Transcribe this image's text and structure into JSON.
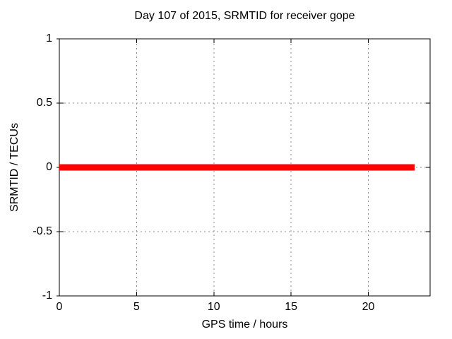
{
  "figure": {
    "background": "#ffffff",
    "text_color": "#000000"
  },
  "chart_data": {
    "type": "line",
    "title": "Day 107 of 2015, SRMTID for receiver gope",
    "xlabel": "GPS time / hours",
    "ylabel": "SRMTID / TECUs",
    "xlim": [
      0,
      24
    ],
    "ylim": [
      -1,
      1
    ],
    "xticks": [
      {
        "value": 0,
        "label": "0"
      },
      {
        "value": 5,
        "label": "5"
      },
      {
        "value": 10,
        "label": "10"
      },
      {
        "value": 15,
        "label": "15"
      },
      {
        "value": 20,
        "label": "20"
      }
    ],
    "yticks": [
      {
        "value": -1,
        "label": "-1"
      },
      {
        "value": -0.5,
        "label": "-0.5"
      },
      {
        "value": 0,
        "label": "0"
      },
      {
        "value": 0.5,
        "label": "0.5"
      },
      {
        "value": 1,
        "label": "1"
      }
    ],
    "grid": {
      "show": true,
      "style": "dashed",
      "color": "#8c8c8c"
    },
    "axis_color": "#000000",
    "legend": null,
    "series": [
      {
        "name": "SRMTID",
        "color": "#ff0000",
        "line_width": 9,
        "x": [
          0,
          23
        ],
        "y": [
          0,
          0
        ]
      }
    ]
  }
}
